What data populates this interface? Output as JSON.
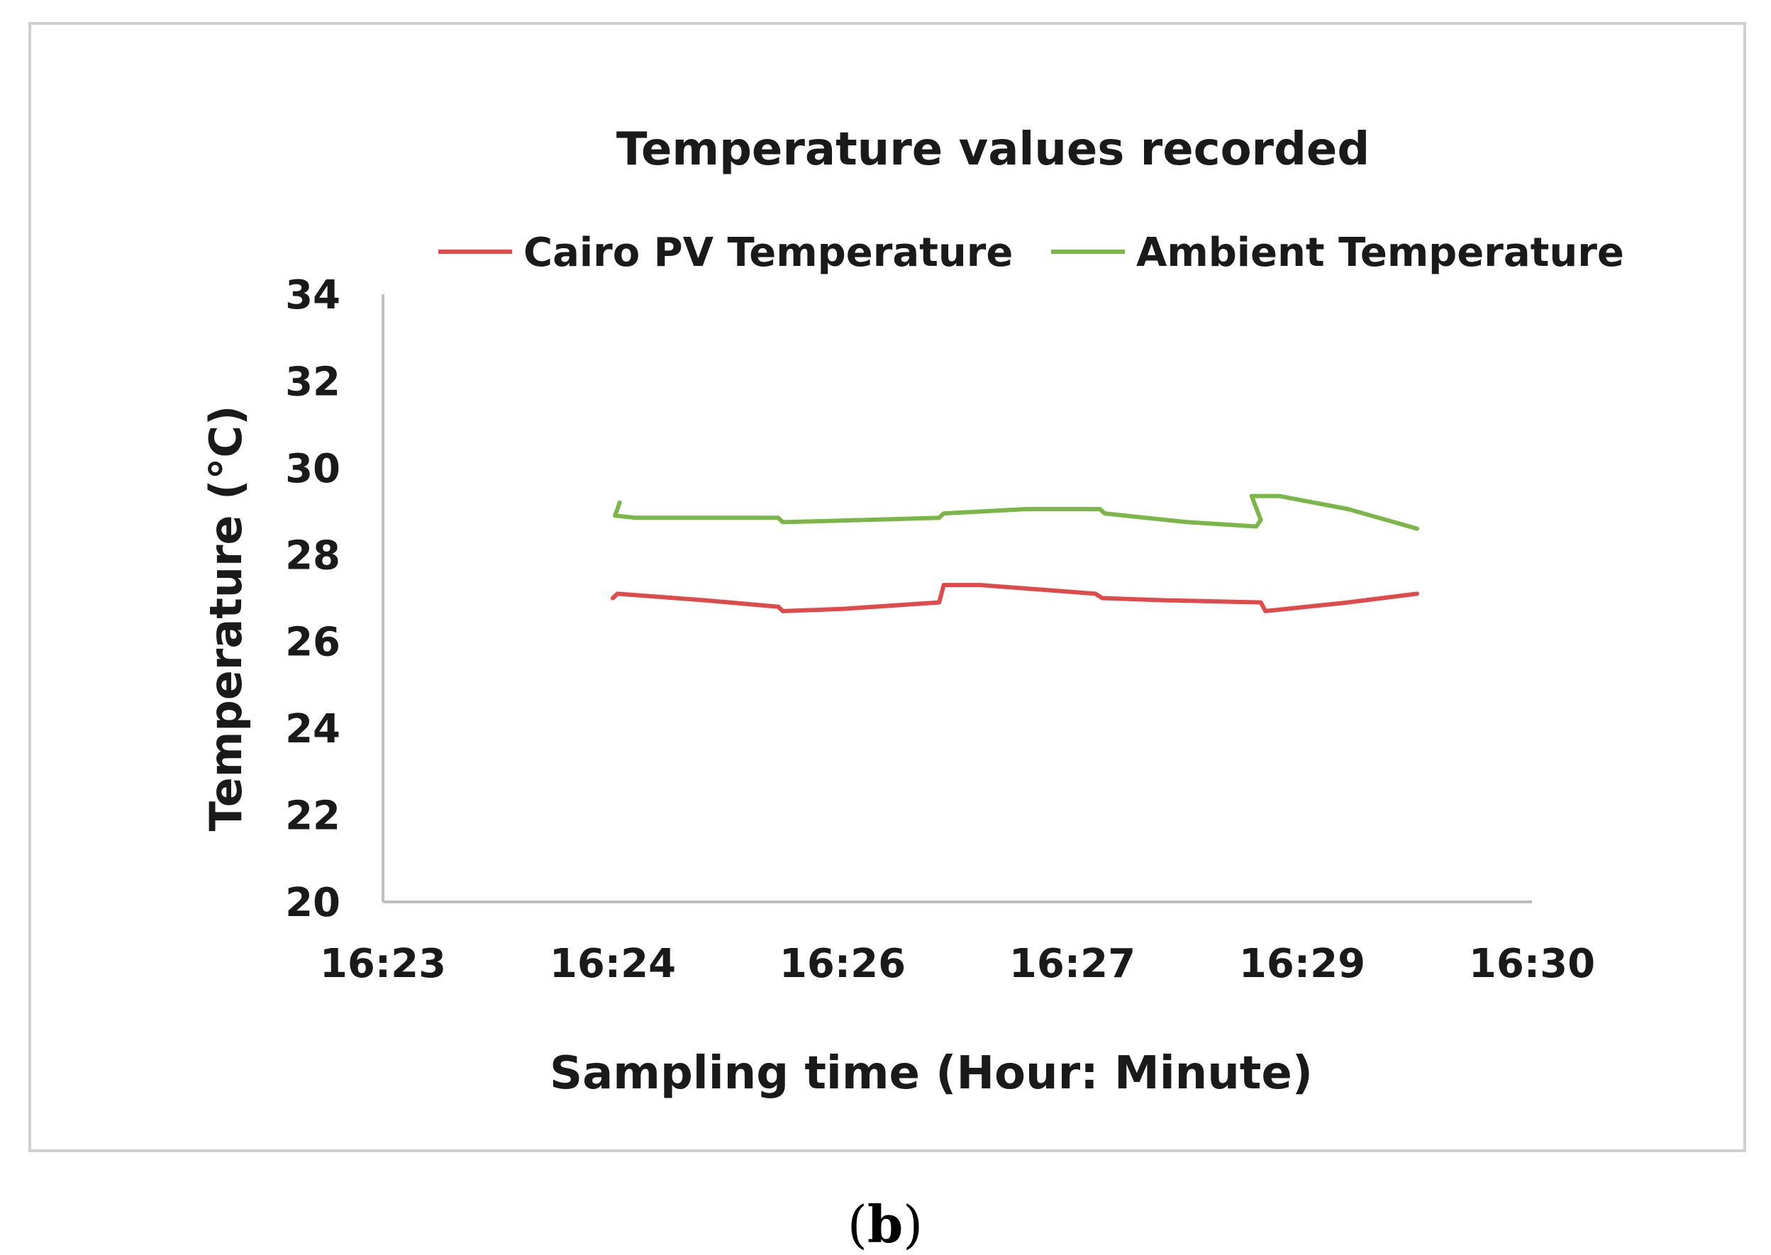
{
  "caption": {
    "open": "(",
    "letter": "b",
    "close": ")"
  },
  "chart_data": {
    "type": "line",
    "title": "Temperature values recorded",
    "xlabel": "Sampling time (Hour: Minute)",
    "ylabel": "Temperature (°C)",
    "ylim": [
      20,
      34
    ],
    "yticks": [
      20,
      22,
      24,
      26,
      28,
      30,
      32,
      34
    ],
    "xticks": [
      "16:23",
      "16:24",
      "16:26",
      "16:27",
      "16:29",
      "16:30"
    ],
    "xlim": [
      0,
      5
    ],
    "legend_position": "top",
    "grid": false,
    "series": [
      {
        "name": "Cairo PV Temperature",
        "color": "#e04a4a",
        "points": [
          [
            1.0,
            27.0
          ],
          [
            1.02,
            27.1
          ],
          [
            1.4,
            26.95
          ],
          [
            1.72,
            26.8
          ],
          [
            1.74,
            26.7
          ],
          [
            2.0,
            26.75
          ],
          [
            2.42,
            26.9
          ],
          [
            2.44,
            27.3
          ],
          [
            2.6,
            27.3
          ],
          [
            3.1,
            27.1
          ],
          [
            3.13,
            27.0
          ],
          [
            3.4,
            26.95
          ],
          [
            3.82,
            26.9
          ],
          [
            3.84,
            26.7
          ],
          [
            4.2,
            26.9
          ],
          [
            4.5,
            27.1
          ]
        ]
      },
      {
        "name": "Ambient Temperature",
        "color": "#7ab648",
        "points": [
          [
            1.03,
            29.2
          ],
          [
            1.01,
            28.9
          ],
          [
            1.1,
            28.85
          ],
          [
            1.4,
            28.85
          ],
          [
            1.72,
            28.85
          ],
          [
            1.74,
            28.75
          ],
          [
            2.1,
            28.8
          ],
          [
            2.42,
            28.85
          ],
          [
            2.44,
            28.95
          ],
          [
            2.8,
            29.05
          ],
          [
            3.12,
            29.05
          ],
          [
            3.14,
            28.95
          ],
          [
            3.5,
            28.75
          ],
          [
            3.8,
            28.65
          ],
          [
            3.82,
            28.8
          ],
          [
            3.78,
            29.35
          ],
          [
            3.9,
            29.35
          ],
          [
            4.2,
            29.05
          ],
          [
            4.5,
            28.6
          ]
        ]
      }
    ]
  }
}
